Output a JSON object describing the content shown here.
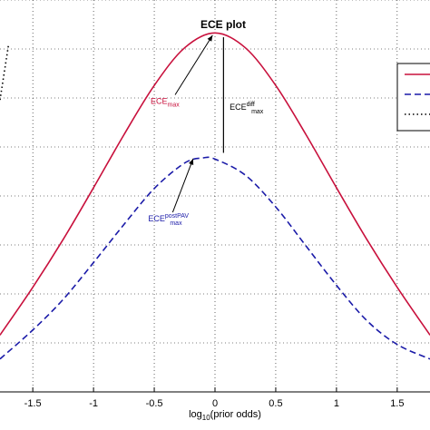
{
  "chart_data": {
    "type": "line",
    "title": "ECE plot",
    "xlabel_main": "log",
    "xlabel_sub": "10",
    "xlabel_rest": "(prior odds)",
    "xlim": [
      -1.77,
      1.77
    ],
    "ylim": [
      0,
      1
    ],
    "grid": true,
    "legend_placement": "top-right",
    "x_ticks": [
      -1.5,
      -1,
      -0.5,
      0,
      0.5,
      1,
      1.5
    ],
    "x_tick_labels": [
      "-1.5",
      "-1",
      "-0.5",
      "0",
      "0.5",
      "1",
      "1.5"
    ],
    "series": [
      {
        "style": "solid",
        "color": "#c8103c",
        "x": [
          -1.77,
          -1.5,
          -1.25,
          -1.0,
          -0.75,
          -0.5,
          -0.25,
          0.0,
          0.25,
          0.5,
          0.75,
          1.0,
          1.25,
          1.5,
          1.77
        ],
        "y": [
          0.145,
          0.267,
          0.389,
          0.521,
          0.656,
          0.782,
          0.878,
          0.916,
          0.878,
          0.782,
          0.656,
          0.521,
          0.389,
          0.267,
          0.145
        ]
      },
      {
        "style": "dashed",
        "color": "#1a1aa8",
        "x": [
          -1.77,
          -1.5,
          -1.25,
          -1.0,
          -0.75,
          -0.5,
          -0.25,
          -0.1,
          0.0,
          0.25,
          0.5,
          0.75,
          1.0,
          1.25,
          1.5,
          1.77
        ],
        "y": [
          0.084,
          0.158,
          0.236,
          0.33,
          0.427,
          0.519,
          0.584,
          0.597,
          0.594,
          0.553,
          0.472,
          0.372,
          0.272,
          0.182,
          0.121,
          0.084
        ]
      },
      {
        "style": "dotted",
        "color": "#000000",
        "x": [
          -1.77,
          -1.7
        ],
        "y": [
          0.745,
          0.885
        ]
      }
    ],
    "annotations": [
      {
        "main": "ECE",
        "sub": "max",
        "sup": "",
        "color": "#c8103c",
        "text_x": -0.53,
        "text_y": 0.735,
        "arrow_to_x": -0.02,
        "arrow_to_y": 0.91
      },
      {
        "main": "ECE",
        "sub": "max",
        "sup": "postPAV",
        "color": "#1a1aa8",
        "text_x": -0.55,
        "text_y": 0.435,
        "arrow_to_x": -0.18,
        "arrow_to_y": 0.595
      },
      {
        "main": "ECE",
        "sub": "max",
        "sup": "diff",
        "color": "#000000",
        "text_x": 0.12,
        "text_y": 0.72,
        "arrow_to_x": null,
        "arrow_to_y": null
      }
    ],
    "diff_line": {
      "x": 0.07,
      "y_top": 0.905,
      "y_bottom": 0.61
    }
  }
}
